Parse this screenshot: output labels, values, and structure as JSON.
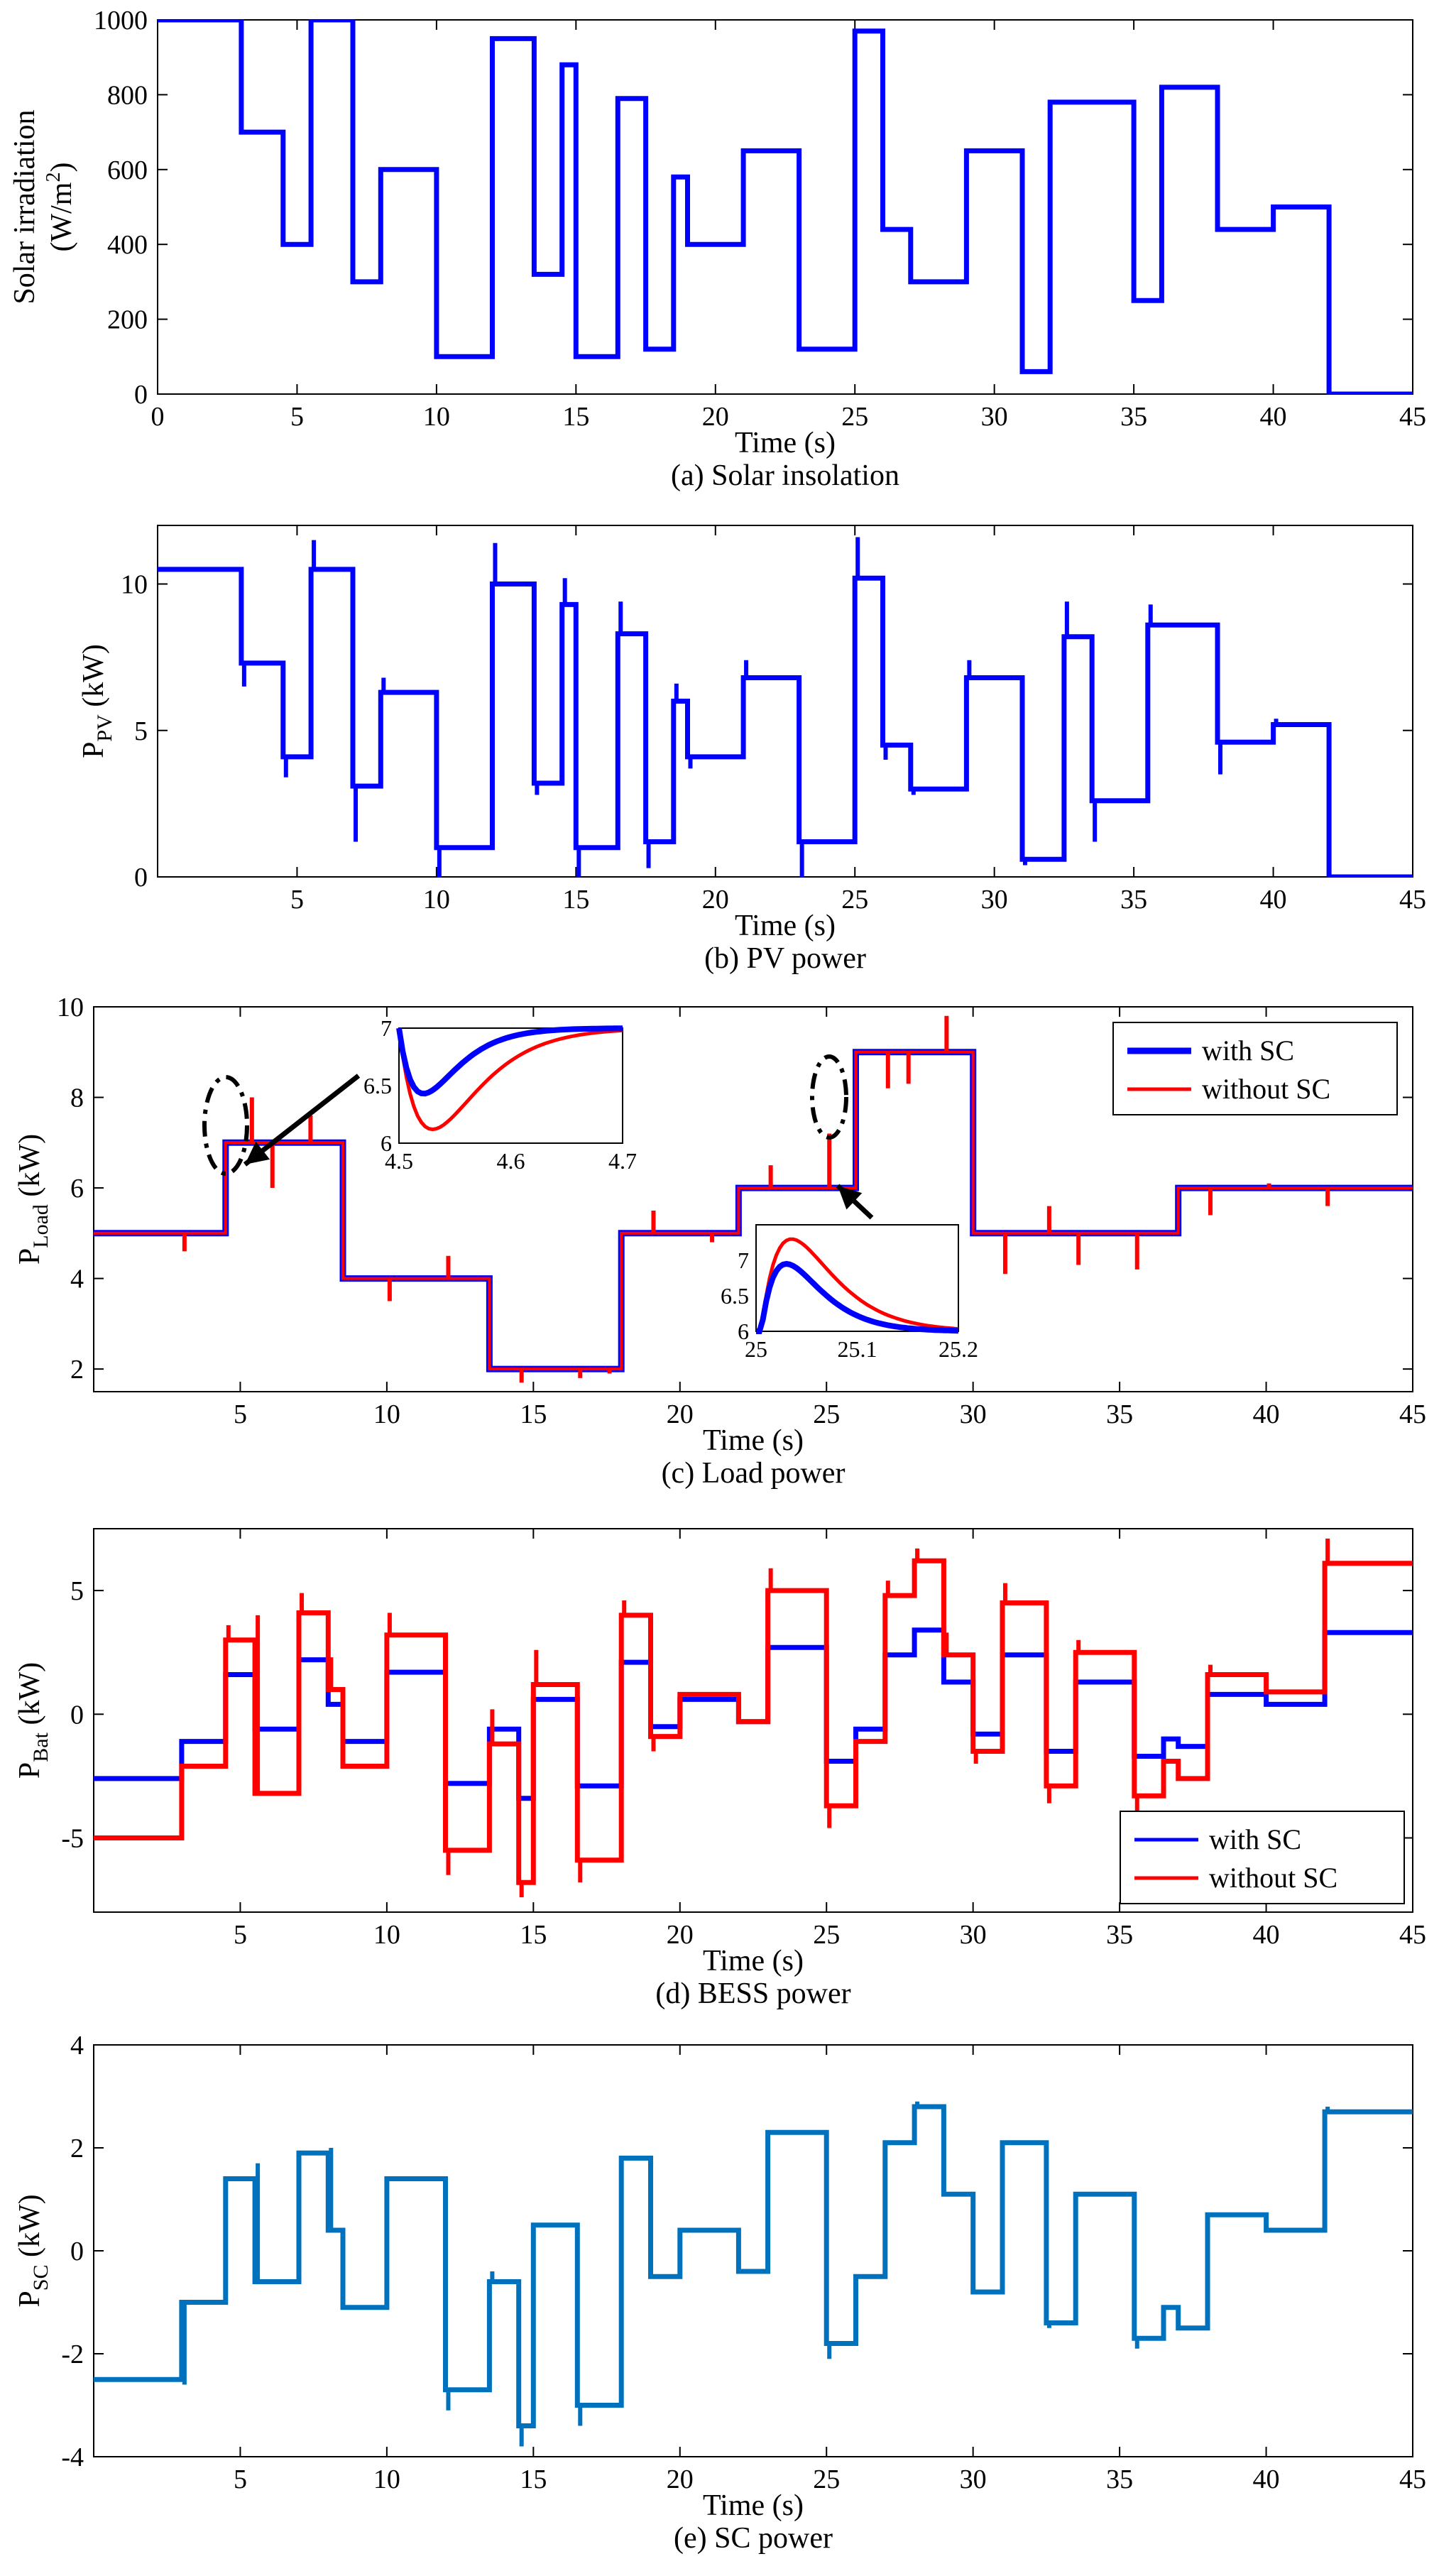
{
  "chart_data": [
    {
      "type": "line",
      "caption": "(a) Solar insolation",
      "xlabel": "Time (s)",
      "ylabel": {
        "main": "Solar irradiation",
        "unit_pre": "(W/m",
        "unit_sup": "2",
        "unit_post": ")"
      },
      "xlim": [
        0,
        45
      ],
      "ylim": [
        0,
        1000
      ],
      "xticks": [
        "0",
        "5",
        "10",
        "15",
        "20",
        "25",
        "30",
        "35",
        "40",
        "45"
      ],
      "yticks": [
        "0",
        "200",
        "400",
        "600",
        "800",
        "1000"
      ],
      "series": [
        {
          "color": "#0000ff",
          "x": [
            0,
            3,
            4.5,
            5.5,
            7,
            8,
            10,
            12,
            13.5,
            14.5,
            15,
            16.5,
            17.5,
            18.5,
            19,
            20,
            21,
            22,
            23,
            25,
            26,
            27,
            28,
            29,
            30,
            31,
            32,
            33,
            35,
            36,
            37,
            38,
            39,
            40,
            41,
            42
          ],
          "y": [
            1000,
            700,
            400,
            1000,
            300,
            600,
            100,
            950,
            320,
            880,
            100,
            790,
            120,
            580,
            400,
            400,
            650,
            650,
            120,
            970,
            440,
            300,
            300,
            650,
            650,
            60,
            780,
            780,
            250,
            820,
            820,
            440,
            440,
            500,
            500,
            0
          ]
        }
      ]
    },
    {
      "type": "line",
      "caption": "(b) PV power",
      "xlabel": "Time (s)",
      "ylabel": {
        "main": "P",
        "sub": "PV",
        "unit": " (kW)"
      },
      "xlim": [
        0,
        45
      ],
      "ylim": [
        0,
        12
      ],
      "xticks": [
        "5",
        "10",
        "15",
        "20",
        "25",
        "30",
        "35",
        "40",
        "45"
      ],
      "yticks": [
        "0",
        "5",
        "10"
      ],
      "series": [
        {
          "color": "#0000ff",
          "x": [
            0,
            3,
            4.5,
            5.5,
            7,
            8,
            10,
            12,
            13.5,
            14.5,
            15,
            16.5,
            17.5,
            18.5,
            19,
            20,
            21,
            22,
            23,
            25,
            26,
            27,
            28,
            29,
            31,
            32.5,
            33.5,
            35.5,
            38,
            40,
            42
          ],
          "y": [
            10.5,
            7.3,
            4.1,
            10.5,
            3.1,
            6.3,
            1.0,
            10.0,
            3.2,
            9.3,
            1.0,
            8.3,
            1.2,
            6.0,
            4.1,
            4.1,
            6.8,
            6.8,
            1.2,
            10.2,
            4.5,
            3.0,
            3.0,
            6.8,
            0.6,
            8.2,
            2.6,
            8.6,
            4.6,
            5.2,
            0
          ],
          "spikes": [
            {
              "x": 3,
              "peak": 6.5
            },
            {
              "x": 4.5,
              "peak": 3.4
            },
            {
              "x": 5.5,
              "peak": 11.5
            },
            {
              "x": 7,
              "peak": 1.2
            },
            {
              "x": 8,
              "peak": 6.8
            },
            {
              "x": 10,
              "peak": -0.2
            },
            {
              "x": 12,
              "peak": 11.4
            },
            {
              "x": 13.5,
              "peak": 2.8
            },
            {
              "x": 14.5,
              "peak": 10.2
            },
            {
              "x": 15,
              "peak": -0.2
            },
            {
              "x": 16.5,
              "peak": 9.4
            },
            {
              "x": 17.5,
              "peak": 0.3
            },
            {
              "x": 18.5,
              "peak": 6.6
            },
            {
              "x": 19,
              "peak": 3.7
            },
            {
              "x": 21,
              "peak": 7.4
            },
            {
              "x": 23,
              "peak": 0.0
            },
            {
              "x": 25,
              "peak": 11.6
            },
            {
              "x": 26,
              "peak": 4.0
            },
            {
              "x": 27,
              "peak": 2.8
            },
            {
              "x": 29,
              "peak": 7.4
            },
            {
              "x": 31,
              "peak": 0.4
            },
            {
              "x": 32.5,
              "peak": 9.4
            },
            {
              "x": 33.5,
              "peak": 1.2
            },
            {
              "x": 35.5,
              "peak": 9.3
            },
            {
              "x": 38,
              "peak": 3.5
            },
            {
              "x": 40,
              "peak": 5.4
            },
            {
              "x": 42,
              "peak": -0.1
            }
          ]
        }
      ]
    },
    {
      "type": "line",
      "caption": "(c) Load power",
      "xlabel": "Time (s)",
      "ylabel": {
        "main": "P",
        "sub": "Load",
        "unit": " (kW)"
      },
      "xlim": [
        0,
        45
      ],
      "ylim": [
        1.5,
        10
      ],
      "xticks": [
        "5",
        "10",
        "15",
        "20",
        "25",
        "30",
        "35",
        "40",
        "45"
      ],
      "yticks": [
        "2",
        "4",
        "6",
        "8",
        "10"
      ],
      "legend": {
        "entries": [
          {
            "label": "with SC",
            "color": "#0000ff"
          },
          {
            "label": "without SC",
            "color": "#ff0000"
          }
        ],
        "placement": "top-right"
      },
      "series": [
        {
          "name": "with SC",
          "color": "#0000ff",
          "x": [
            0,
            4.5,
            8.5,
            13.5,
            18,
            22,
            26,
            30,
            37
          ],
          "y": [
            5,
            7,
            4,
            2,
            5,
            6,
            9,
            5,
            6
          ]
        },
        {
          "name": "without SC",
          "color": "#ff0000",
          "x": [
            0,
            4.5,
            8.5,
            13.5,
            18,
            22,
            26,
            30,
            37
          ],
          "y": [
            5,
            7,
            4,
            2,
            5,
            6,
            9,
            5,
            6
          ],
          "spikes": [
            {
              "x": 3,
              "peak": 4.6
            },
            {
              "x": 5.3,
              "peak": 8.0
            },
            {
              "x": 6,
              "peak": 6.0
            },
            {
              "x": 7.3,
              "peak": 7.6
            },
            {
              "x": 10,
              "peak": 3.5
            },
            {
              "x": 12,
              "peak": 4.5
            },
            {
              "x": 14.5,
              "peak": 1.7
            },
            {
              "x": 16.5,
              "peak": 1.8
            },
            {
              "x": 17.5,
              "peak": 1.9
            },
            {
              "x": 19,
              "peak": 5.5
            },
            {
              "x": 21,
              "peak": 4.8
            },
            {
              "x": 23,
              "peak": 6.5
            },
            {
              "x": 25,
              "peak": 7.2
            },
            {
              "x": 27,
              "peak": 8.2
            },
            {
              "x": 27.7,
              "peak": 8.3
            },
            {
              "x": 29,
              "peak": 9.8
            },
            {
              "x": 31,
              "peak": 4.1
            },
            {
              "x": 32.5,
              "peak": 5.6
            },
            {
              "x": 33.5,
              "peak": 4.3
            },
            {
              "x": 35.5,
              "peak": 4.2
            },
            {
              "x": 38,
              "peak": 5.4
            },
            {
              "x": 40,
              "peak": 6.1
            },
            {
              "x": 42,
              "peak": 5.6
            }
          ]
        }
      ],
      "insets": [
        {
          "xlim": [
            4.5,
            4.7
          ],
          "ylim": [
            6,
            7
          ],
          "xticks": [
            "4.5",
            "4.6",
            "4.7"
          ],
          "yticks": [
            "6",
            "6.5",
            "7"
          ],
          "with_sc_min": {
            "x": 4.52,
            "y": 6.43
          },
          "without_sc_min": {
            "x": 4.53,
            "y": 6.12
          },
          "settle_x": 4.64
        },
        {
          "xlim": [
            25,
            25.2
          ],
          "ylim": [
            6,
            7.5
          ],
          "xticks": [
            "25",
            "25.1",
            "25.2"
          ],
          "yticks": [
            "6",
            "6.5",
            "7"
          ],
          "with_sc_peak": {
            "x": 25.03,
            "y": 6.95
          },
          "without_sc_peak": {
            "x": 25.035,
            "y": 7.3
          }
        }
      ]
    },
    {
      "type": "line",
      "caption": "(d) BESS power",
      "xlabel": "Time (s)",
      "ylabel": {
        "main": "P",
        "sub": "Bat",
        "unit": " (kW)"
      },
      "xlim": [
        0,
        45
      ],
      "ylim": [
        -8,
        7.5
      ],
      "xticks": [
        "5",
        "10",
        "15",
        "20",
        "25",
        "30",
        "35",
        "40",
        "45"
      ],
      "yticks": [
        "-5",
        "0",
        "5"
      ],
      "legend": {
        "entries": [
          {
            "label": "with SC",
            "color": "#0000ff"
          },
          {
            "label": "without SC",
            "color": "#ff0000"
          }
        ],
        "placement": "bottom-right"
      },
      "series": [
        {
          "name": "with SC",
          "color": "#0000ff",
          "x": [
            0,
            3,
            4.5,
            5.5,
            7,
            8,
            8.5,
            10,
            12,
            13.5,
            14.5,
            15,
            16.5,
            18,
            19,
            20,
            22,
            23,
            25,
            26,
            27,
            28,
            29,
            30,
            31,
            32.5,
            33.5,
            35.5,
            36.5,
            37,
            38,
            40,
            42
          ],
          "y": [
            -2.6,
            -1.1,
            1.6,
            -0.6,
            2.2,
            0.4,
            -1.1,
            1.7,
            -2.8,
            -0.6,
            -3.4,
            0.6,
            -2.9,
            2.1,
            -0.5,
            0.6,
            -0.3,
            2.7,
            -1.9,
            -0.6,
            2.4,
            3.4,
            1.3,
            -0.8,
            2.4,
            -1.5,
            1.3,
            -1.7,
            -1.0,
            -1.3,
            0.8,
            0.4,
            3.3
          ]
        },
        {
          "name": "without SC",
          "color": "#ff0000",
          "x": [
            0,
            3,
            4.5,
            5.5,
            7,
            8,
            8.5,
            10,
            12,
            13.5,
            14.5,
            15,
            16.5,
            18,
            19,
            20,
            22,
            23,
            25,
            26,
            27,
            28,
            29,
            30,
            31,
            32.5,
            33.5,
            35.5,
            36.5,
            37,
            38,
            40,
            42
          ],
          "y": [
            -5.0,
            -2.1,
            3.0,
            -3.2,
            4.1,
            1.0,
            -2.1,
            3.2,
            -5.5,
            -1.2,
            -6.8,
            1.2,
            -5.9,
            4.0,
            -0.9,
            0.8,
            -0.3,
            5.0,
            -3.7,
            -1.1,
            4.8,
            6.2,
            2.4,
            -1.5,
            4.5,
            -2.9,
            2.5,
            -3.3,
            -1.9,
            -2.6,
            1.6,
            0.9,
            6.1
          ],
          "spikes": [
            {
              "x": 4.5,
              "peak": 3.6
            },
            {
              "x": 5.5,
              "peak": 4.0
            },
            {
              "x": 7,
              "peak": 4.9
            },
            {
              "x": 8,
              "peak": 2.3
            },
            {
              "x": 10,
              "peak": 4.1
            },
            {
              "x": 12,
              "peak": -6.5
            },
            {
              "x": 13.5,
              "peak": 0.2
            },
            {
              "x": 14.5,
              "peak": -7.4
            },
            {
              "x": 15,
              "peak": 2.6
            },
            {
              "x": 16.5,
              "peak": -6.8
            },
            {
              "x": 18,
              "peak": 4.6
            },
            {
              "x": 19,
              "peak": -1.5
            },
            {
              "x": 23,
              "peak": 5.9
            },
            {
              "x": 25,
              "peak": -4.6
            },
            {
              "x": 27,
              "peak": 5.4
            },
            {
              "x": 28,
              "peak": 6.7
            },
            {
              "x": 29,
              "peak": 3.3
            },
            {
              "x": 30,
              "peak": -2.0
            },
            {
              "x": 31,
              "peak": 5.3
            },
            {
              "x": 32.5,
              "peak": -3.6
            },
            {
              "x": 33.5,
              "peak": 3.0
            },
            {
              "x": 35.5,
              "peak": -4.0
            },
            {
              "x": 38,
              "peak": 2.0
            },
            {
              "x": 42,
              "peak": 7.1
            }
          ]
        }
      ]
    },
    {
      "type": "line",
      "caption": "(e) SC power",
      "xlabel": "Time (s)",
      "ylabel": {
        "main": "P",
        "sub": "SC",
        "unit": " (kW)"
      },
      "xlim": [
        0,
        45
      ],
      "ylim": [
        -4,
        4
      ],
      "xticks": [
        "5",
        "10",
        "15",
        "20",
        "25",
        "30",
        "35",
        "40",
        "45"
      ],
      "yticks": [
        "-4",
        "-2",
        "0",
        "2",
        "4"
      ],
      "series": [
        {
          "color": "#0072bd",
          "x": [
            0,
            3,
            4.5,
            5.5,
            7,
            8,
            8.5,
            10,
            12,
            13.5,
            14.5,
            15,
            16.5,
            18,
            19,
            20,
            22,
            23,
            25,
            26,
            27,
            28,
            29,
            30,
            31,
            32.5,
            33.5,
            35.5,
            36.5,
            37,
            38,
            40,
            42
          ],
          "y": [
            -2.5,
            -1.0,
            1.4,
            -0.6,
            1.9,
            0.4,
            -1.1,
            1.4,
            -2.7,
            -0.6,
            -3.4,
            0.5,
            -3.0,
            1.8,
            -0.5,
            0.4,
            -0.4,
            2.3,
            -1.8,
            -0.5,
            2.1,
            2.8,
            1.1,
            -0.8,
            2.1,
            -1.4,
            1.1,
            -1.7,
            -1.1,
            -1.5,
            0.7,
            0.4,
            2.7
          ],
          "spikes": [
            {
              "x": 3,
              "peak": -2.6
            },
            {
              "x": 5.5,
              "peak": 1.7
            },
            {
              "x": 8,
              "peak": 2.0
            },
            {
              "x": 12,
              "peak": -3.1
            },
            {
              "x": 13.5,
              "peak": -0.4
            },
            {
              "x": 14.5,
              "peak": -3.8
            },
            {
              "x": 16.5,
              "peak": -3.4
            },
            {
              "x": 25,
              "peak": -2.1
            },
            {
              "x": 28,
              "peak": 2.9
            },
            {
              "x": 32.5,
              "peak": -1.5
            },
            {
              "x": 35.5,
              "peak": -1.9
            },
            {
              "x": 42,
              "peak": 2.8
            }
          ]
        }
      ]
    }
  ]
}
